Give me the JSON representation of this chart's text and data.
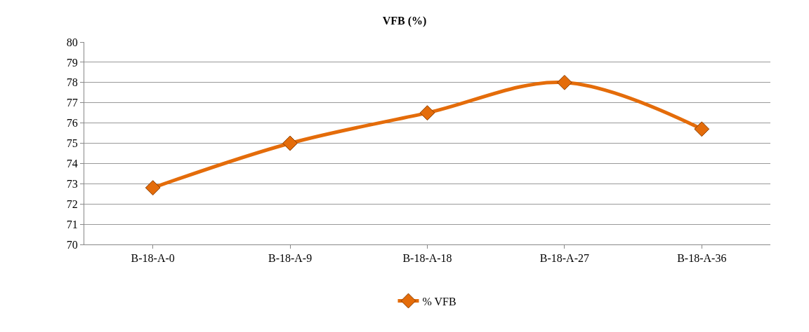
{
  "chart_data": {
    "type": "line",
    "title": "VFB (%)",
    "categories": [
      "B-18-A-0",
      "B-18-A-9",
      "B-18-A-18",
      "B-18-A-27",
      "B-18-A-36"
    ],
    "series": [
      {
        "name": "% VFB",
        "color": "#e46c0a",
        "values": [
          72.8,
          75.0,
          76.5,
          78.0,
          75.7
        ]
      }
    ],
    "ylim": [
      70,
      80
    ],
    "yticks": [
      70,
      71,
      72,
      73,
      74,
      75,
      76,
      77,
      78,
      79,
      80
    ],
    "grid": "y",
    "legend": "bottom",
    "marker": "diamond",
    "line_style": "solid"
  }
}
